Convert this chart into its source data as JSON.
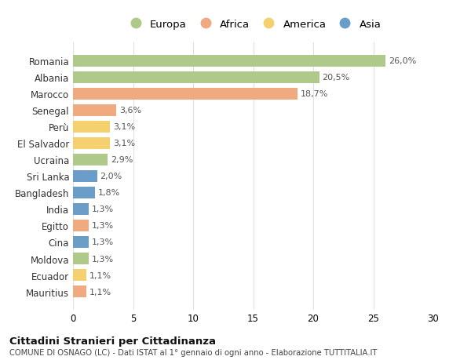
{
  "countries": [
    "Romania",
    "Albania",
    "Marocco",
    "Senegal",
    "Perù",
    "El Salvador",
    "Ucraina",
    "Sri Lanka",
    "Bangladesh",
    "India",
    "Egitto",
    "Cina",
    "Moldova",
    "Ecuador",
    "Mauritius"
  ],
  "values": [
    26.0,
    20.5,
    18.7,
    3.6,
    3.1,
    3.1,
    2.9,
    2.0,
    1.8,
    1.3,
    1.3,
    1.3,
    1.3,
    1.1,
    1.1
  ],
  "labels": [
    "26,0%",
    "20,5%",
    "18,7%",
    "3,6%",
    "3,1%",
    "3,1%",
    "2,9%",
    "2,0%",
    "1,8%",
    "1,3%",
    "1,3%",
    "1,3%",
    "1,3%",
    "1,1%",
    "1,1%"
  ],
  "continents": [
    "Europa",
    "Europa",
    "Africa",
    "Africa",
    "America",
    "America",
    "Europa",
    "Asia",
    "Asia",
    "Asia",
    "Africa",
    "Asia",
    "Europa",
    "America",
    "Africa"
  ],
  "colors": {
    "Europa": "#aec98a",
    "Africa": "#f0aa80",
    "America": "#f5d06e",
    "Asia": "#6a9ec9"
  },
  "legend_order": [
    "Europa",
    "Africa",
    "America",
    "Asia"
  ],
  "title": "Cittadini Stranieri per Cittadinanza",
  "subtitle": "COMUNE DI OSNAGO (LC) - Dati ISTAT al 1° gennaio di ogni anno - Elaborazione TUTTITALIA.IT",
  "xlim": [
    0,
    30
  ],
  "xticks": [
    0,
    5,
    10,
    15,
    20,
    25,
    30
  ],
  "bg_color": "#ffffff",
  "grid_color": "#e0e0e0"
}
